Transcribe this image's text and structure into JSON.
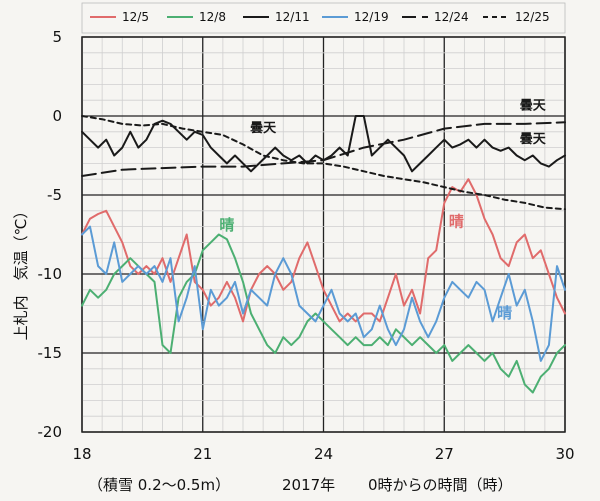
{
  "chart_data": {
    "type": "line",
    "xlabel": "0時からの時間（時）",
    "ylabel": "上札内　気温（℃）",
    "year_label": "2017年",
    "snow_note": "（積雪 0.2〜0.5m）",
    "xlim": [
      18,
      30
    ],
    "ylim": [
      -20,
      5
    ],
    "x_ticks": [
      18,
      21,
      24,
      27,
      30
    ],
    "y_ticks": [
      5,
      0,
      -5,
      -10,
      -15,
      -20
    ],
    "x_tick_labels": [
      "18",
      "21",
      "24",
      "27",
      "30"
    ],
    "y_tick_labels": [
      "5",
      "0",
      "-5",
      "-10",
      "-15",
      "-20"
    ],
    "grid": true,
    "legend_position": "top",
    "series": [
      {
        "name": "12/5",
        "color": "#e06b6b",
        "dash": "solid",
        "x": [
          18.0,
          18.2,
          18.4,
          18.6,
          18.8,
          19.0,
          19.2,
          19.4,
          19.6,
          19.8,
          20.0,
          20.2,
          20.4,
          20.6,
          20.8,
          21.0,
          21.2,
          21.4,
          21.6,
          21.8,
          22.0,
          22.2,
          22.4,
          22.6,
          22.8,
          23.0,
          23.2,
          23.4,
          23.6,
          23.8,
          24.0,
          24.2,
          24.4,
          24.6,
          24.8,
          25.0,
          25.2,
          25.4,
          25.6,
          25.8,
          26.0,
          26.2,
          26.4,
          26.6,
          26.8,
          27.0,
          27.2,
          27.4,
          27.6,
          27.8,
          28.0,
          28.2,
          28.4,
          28.6,
          28.8,
          29.0,
          29.2,
          29.4,
          29.6,
          29.8,
          30.0
        ],
        "values": [
          -7.5,
          -6.5,
          -6.2,
          -6.0,
          -7.0,
          -8.0,
          -9.5,
          -10.0,
          -9.5,
          -10.0,
          -9.0,
          -10.5,
          -9.0,
          -7.5,
          -10.5,
          -11.0,
          -12.0,
          -11.5,
          -10.5,
          -11.5,
          -13.0,
          -11.0,
          -10.0,
          -9.5,
          -10.0,
          -11.0,
          -10.5,
          -9.0,
          -8.0,
          -9.5,
          -11.0,
          -12.0,
          -13.0,
          -12.5,
          -13.0,
          -12.5,
          -12.5,
          -13.0,
          -11.5,
          -10.0,
          -12.0,
          -11.0,
          -12.5,
          -9.0,
          -8.5,
          -5.5,
          -4.5,
          -4.8,
          -4.0,
          -5.0,
          -6.5,
          -7.5,
          -9.0,
          -9.5,
          -8.0,
          -7.5,
          -9.0,
          -8.5,
          -10.0,
          -11.5,
          -12.5
        ]
      },
      {
        "name": "12/8",
        "color": "#4caf72",
        "dash": "solid",
        "x": [
          18.0,
          18.2,
          18.4,
          18.6,
          18.8,
          19.0,
          19.2,
          19.4,
          19.6,
          19.8,
          20.0,
          20.2,
          20.4,
          20.6,
          20.8,
          21.0,
          21.2,
          21.4,
          21.6,
          21.8,
          22.0,
          22.2,
          22.4,
          22.6,
          22.8,
          23.0,
          23.2,
          23.4,
          23.6,
          23.8,
          24.0,
          24.2,
          24.4,
          24.6,
          24.8,
          25.0,
          25.2,
          25.4,
          25.6,
          25.8,
          26.0,
          26.2,
          26.4,
          26.6,
          26.8,
          27.0,
          27.2,
          27.4,
          27.6,
          27.8,
          28.0,
          28.2,
          28.4,
          28.6,
          28.8,
          29.0,
          29.2,
          29.4,
          29.6,
          29.8,
          30.0
        ],
        "values": [
          -12.0,
          -11.0,
          -11.5,
          -11.0,
          -10.0,
          -9.5,
          -9.0,
          -9.5,
          -10.0,
          -10.5,
          -14.5,
          -15.0,
          -11.5,
          -10.5,
          -10.0,
          -8.5,
          -8.0,
          -7.5,
          -7.8,
          -9.0,
          -10.5,
          -12.5,
          -13.5,
          -14.5,
          -15.0,
          -14.0,
          -14.5,
          -14.0,
          -13.0,
          -12.5,
          -13.0,
          -13.5,
          -14.0,
          -14.5,
          -14.0,
          -14.5,
          -14.5,
          -14.0,
          -14.5,
          -13.5,
          -14.0,
          -14.5,
          -14.0,
          -14.5,
          -15.0,
          -14.5,
          -15.5,
          -15.0,
          -14.5,
          -15.0,
          -15.5,
          -15.0,
          -16.0,
          -16.5,
          -15.5,
          -17.0,
          -17.5,
          -16.5,
          -16.0,
          -15.0,
          -14.5
        ]
      },
      {
        "name": "12/11",
        "color": "#1a1a1a",
        "dash": "solid",
        "x": [
          18.0,
          18.2,
          18.4,
          18.6,
          18.8,
          19.0,
          19.2,
          19.4,
          19.6,
          19.8,
          20.0,
          20.2,
          20.4,
          20.6,
          20.8,
          21.0,
          21.2,
          21.4,
          21.6,
          21.8,
          22.0,
          22.2,
          22.4,
          22.6,
          22.8,
          23.0,
          23.2,
          23.4,
          23.6,
          23.8,
          24.0,
          24.2,
          24.4,
          24.6,
          24.8,
          25.0,
          25.2,
          25.4,
          25.6,
          25.8,
          26.0,
          26.2,
          26.4,
          26.6,
          26.8,
          27.0,
          27.2,
          27.4,
          27.6,
          27.8,
          28.0,
          28.2,
          28.4,
          28.6,
          28.8,
          29.0,
          29.2,
          29.4,
          29.6,
          29.8,
          30.0
        ],
        "values": [
          -1.0,
          -1.5,
          -2.0,
          -1.5,
          -2.5,
          -2.0,
          -1.0,
          -2.0,
          -1.5,
          -0.5,
          -0.3,
          -0.5,
          -1.0,
          -1.5,
          -1.0,
          -1.2,
          -2.0,
          -2.5,
          -3.0,
          -2.5,
          -3.0,
          -3.5,
          -3.0,
          -2.5,
          -2.0,
          -2.5,
          -2.8,
          -2.5,
          -3.0,
          -2.5,
          -2.8,
          -2.5,
          -2.0,
          -2.5,
          0.0,
          0.0,
          -2.5,
          -2.0,
          -1.5,
          -2.0,
          -2.5,
          -3.5,
          -3.0,
          -2.5,
          -2.0,
          -1.5,
          -2.0,
          -1.8,
          -1.5,
          -2.0,
          -1.5,
          -2.0,
          -2.2,
          -2.0,
          -2.5,
          -2.8,
          -2.5,
          -3.0,
          -3.2,
          -2.8,
          -2.5
        ]
      },
      {
        "name": "12/19",
        "color": "#5b9bd5",
        "dash": "solid",
        "x": [
          18.0,
          18.2,
          18.4,
          18.6,
          18.8,
          19.0,
          19.2,
          19.4,
          19.6,
          19.8,
          20.0,
          20.2,
          20.4,
          20.6,
          20.8,
          21.0,
          21.2,
          21.4,
          21.6,
          21.8,
          22.0,
          22.2,
          22.4,
          22.6,
          22.8,
          23.0,
          23.2,
          23.4,
          23.6,
          23.8,
          24.0,
          24.2,
          24.4,
          24.6,
          24.8,
          25.0,
          25.2,
          25.4,
          25.6,
          25.8,
          26.0,
          26.2,
          26.4,
          26.6,
          26.8,
          27.0,
          27.2,
          27.4,
          27.6,
          27.8,
          28.0,
          28.2,
          28.4,
          28.6,
          28.8,
          29.0,
          29.2,
          29.4,
          29.6,
          29.8,
          30.0
        ],
        "values": [
          -7.5,
          -7.0,
          -9.5,
          -10.0,
          -8.0,
          -10.5,
          -10.0,
          -9.5,
          -10.0,
          -9.5,
          -10.5,
          -9.0,
          -13.0,
          -11.5,
          -9.5,
          -13.5,
          -11.0,
          -12.0,
          -11.5,
          -10.5,
          -12.5,
          -11.0,
          -11.5,
          -12.0,
          -10.0,
          -9.0,
          -10.0,
          -12.0,
          -12.5,
          -13.0,
          -12.0,
          -11.0,
          -12.5,
          -13.0,
          -12.5,
          -14.0,
          -13.5,
          -12.0,
          -13.5,
          -14.5,
          -13.5,
          -11.5,
          -13.0,
          -14.0,
          -13.0,
          -11.5,
          -10.5,
          -11.0,
          -11.5,
          -10.5,
          -11.0,
          -13.0,
          -11.5,
          -10.0,
          -12.0,
          -11.0,
          -13.0,
          -15.5,
          -14.5,
          -9.5,
          -11.0
        ]
      },
      {
        "name": "12/24",
        "color": "#1a1a1a",
        "dash": "longdash",
        "x": [
          18.0,
          19.0,
          20.0,
          21.0,
          22.0,
          23.0,
          24.0,
          25.0,
          26.0,
          27.0,
          28.0,
          29.0,
          30.0
        ],
        "values": [
          -3.8,
          -3.4,
          -3.3,
          -3.2,
          -3.2,
          -3.0,
          -2.8,
          -2.0,
          -1.5,
          -0.8,
          -0.5,
          -0.5,
          -0.4
        ]
      },
      {
        "name": "12/25",
        "color": "#1a1a1a",
        "dash": "shortdash",
        "x": [
          18.0,
          18.5,
          19.0,
          19.5,
          20.0,
          20.5,
          21.0,
          21.5,
          22.0,
          22.5,
          23.0,
          23.5,
          24.0,
          24.5,
          25.0,
          25.5,
          26.0,
          26.5,
          27.0,
          27.5,
          28.0,
          28.5,
          29.0,
          29.5,
          30.0
        ],
        "values": [
          0.0,
          -0.2,
          -0.5,
          -0.6,
          -0.5,
          -0.8,
          -1.0,
          -1.2,
          -1.8,
          -2.5,
          -2.8,
          -3.0,
          -3.0,
          -3.2,
          -3.5,
          -3.8,
          -4.0,
          -4.2,
          -4.5,
          -4.8,
          -5.0,
          -5.3,
          -5.5,
          -5.8,
          -5.9
        ]
      }
    ],
    "annotations": [
      {
        "text": "晴",
        "x": 21.6,
        "y": -7.2,
        "color": "#4caf72",
        "size": "big"
      },
      {
        "text": "晴",
        "x": 27.3,
        "y": -7.0,
        "color": "#e06b6b",
        "size": "big"
      },
      {
        "text": "晴",
        "x": 28.5,
        "y": -12.8,
        "color": "#5b9bd5",
        "size": "big"
      },
      {
        "text": "曇天",
        "x": 22.5,
        "y": -1.0,
        "color": "#1a1a1a",
        "size": "normal"
      },
      {
        "text": "曇天",
        "x": 29.2,
        "y": 0.4,
        "color": "#1a1a1a",
        "size": "normal"
      },
      {
        "text": "曇天",
        "x": 29.2,
        "y": -1.7,
        "color": "#1a1a1a",
        "size": "normal"
      }
    ]
  }
}
